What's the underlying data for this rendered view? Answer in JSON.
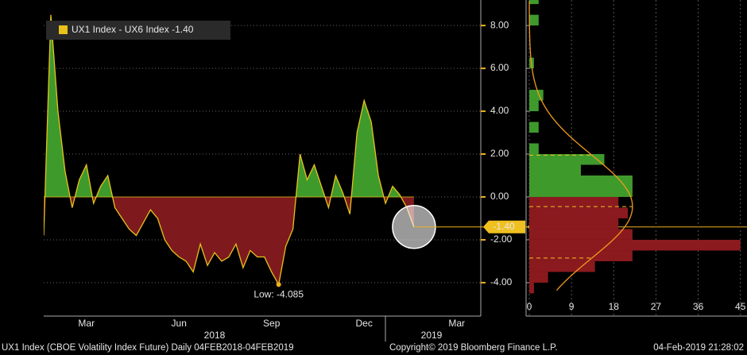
{
  "chart_data": [
    {
      "type": "line",
      "legend": "UX1 Index - UX6 Index",
      "categories": [
        null,
        null,
        null,
        null,
        null,
        null,
        "Mar",
        null,
        null,
        null,
        null,
        null,
        null,
        null,
        null,
        null,
        null,
        null,
        null,
        "Jun",
        null,
        null,
        null,
        null,
        null,
        null,
        null,
        null,
        null,
        null,
        null,
        null,
        "Sep",
        null,
        null,
        null,
        null,
        null,
        null,
        null,
        null,
        null,
        null,
        null,
        null,
        "Dec",
        null,
        null,
        null,
        null,
        null,
        null,
        null,
        null,
        null,
        null,
        null,
        null,
        "Mar",
        null,
        null,
        null
      ],
      "year_labels": [
        "2018",
        "2019"
      ],
      "series": [
        {
          "name": "UX1 Index - UX6 Index",
          "color": "#e8c21a",
          "values": [
            -1.8,
            8.5,
            4.0,
            1.2,
            -0.5,
            0.8,
            1.5,
            -0.3,
            0.5,
            1.0,
            -0.5,
            -1.0,
            -1.5,
            -1.8,
            -1.2,
            -0.6,
            -1.0,
            -2.0,
            -2.5,
            -2.8,
            -3.0,
            -3.5,
            -2.2,
            -3.2,
            -2.6,
            -3.0,
            -2.8,
            -2.2,
            -3.3,
            -2.5,
            -2.8,
            -2.8,
            -3.5,
            -4.085,
            -2.3,
            -1.5,
            2.0,
            0.8,
            1.5,
            0.5,
            -0.5,
            1.0,
            0.2,
            -0.8,
            3.0,
            4.5,
            3.5,
            1.0,
            -0.3,
            0.5,
            0.1,
            -0.5,
            -1.4,
            null,
            null,
            null,
            null,
            null,
            null,
            null,
            null,
            null
          ]
        }
      ],
      "positive_color": "#3f9a2c",
      "negative_color": "#7e1a1e",
      "last_value": {
        "value": -1.4,
        "label": "-1.40"
      },
      "low": {
        "value": -4.085,
        "label": "Low: -4.085"
      },
      "ylim": [
        -5.56,
        9.19
      ],
      "yticks": [
        {
          "value": -4,
          "label": "-4.00"
        },
        {
          "value": -2,
          "label": "-2.00"
        },
        {
          "value": 0,
          "label": "0.00"
        },
        {
          "value": 2,
          "label": "2.00"
        },
        {
          "value": 4,
          "label": "4.00"
        },
        {
          "value": 6,
          "label": "6.00"
        },
        {
          "value": 8,
          "label": "8.00"
        }
      ],
      "grid": true
    },
    {
      "type": "histogram",
      "orientation": "horizontal",
      "bins": [
        -4.5,
        -4,
        -3.5,
        -3,
        -2.5,
        -2,
        -1.5,
        -1,
        -0.5,
        0,
        0.5,
        1,
        1.5,
        2,
        2.5,
        3,
        3.5,
        4,
        4.5,
        5,
        5.5,
        6,
        6.5,
        7,
        7.5,
        8,
        8.5,
        9,
        9.5
      ],
      "values": [
        1,
        4,
        14,
        22,
        45,
        22,
        19,
        21,
        19,
        22,
        22,
        11,
        16,
        2,
        0,
        2,
        0,
        2,
        3,
        0,
        0,
        1,
        0,
        0,
        0,
        2,
        0,
        2
      ],
      "positive_color": "#3f9a2c",
      "negative_color": "#8b1a1e",
      "fit": {
        "mean": -0.45,
        "sd": 2.4,
        "peak": 22,
        "color": "#f39a1e"
      },
      "xlim": [
        0,
        46.4
      ],
      "xticks": [
        0,
        9,
        18,
        27,
        36,
        45
      ],
      "grid": true
    },
    {
      "type": "footer",
      "left": "UX1 Index (CBOE Volatility Index Future)  Daily 04FEB2018-04FEB2019",
      "center": "Copyright© 2019 Bloomberg Finance L.P.",
      "right": "04-Feb-2019 21:28:02"
    }
  ]
}
